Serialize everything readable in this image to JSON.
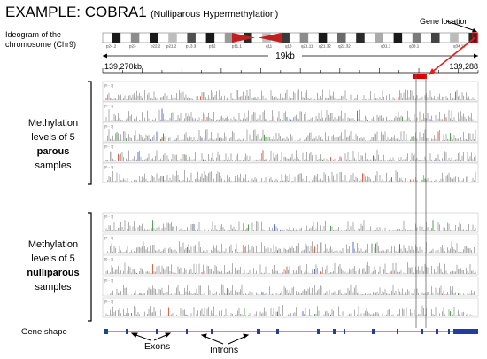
{
  "title": {
    "main": "EXAMPLE: COBRA1",
    "sub": "(Nulliparous Hypermethylation)"
  },
  "ideogram": {
    "label_line1": "Ideogram of the",
    "label_line2": "chromosome (Chr9)",
    "bands": [
      "p24.2",
      "p23",
      "p22.2",
      "p21.2",
      "p13.3",
      "p12",
      "p11.1",
      "q11",
      "q13",
      "q21.11",
      "q21.32",
      "q22.32",
      "q31.1",
      "q33.1",
      "q34.11"
    ]
  },
  "gene_location_label": "Gene location",
  "ruler": {
    "span": "19kb",
    "left_coord": "139,270kb",
    "right_coord": "139,288"
  },
  "track_scale_label": "[0 - 1]",
  "groups": [
    {
      "line1": "Methylation",
      "line2": "levels of 5",
      "bold": "parous",
      "line4": "samples"
    },
    {
      "line1": "Methylation",
      "line2": "levels of 5",
      "bold": "nulliparous",
      "line4": "samples"
    }
  ],
  "gene_shape_label": "Gene shape",
  "annotations": {
    "exons": "Exons",
    "introns": "Introns"
  },
  "colors": {
    "track": "#9a9a9a",
    "highlight": "#e00000",
    "gene": "#1f3f9f",
    "accent_red": "#e02020",
    "accent_blue": "#3050c0"
  }
}
